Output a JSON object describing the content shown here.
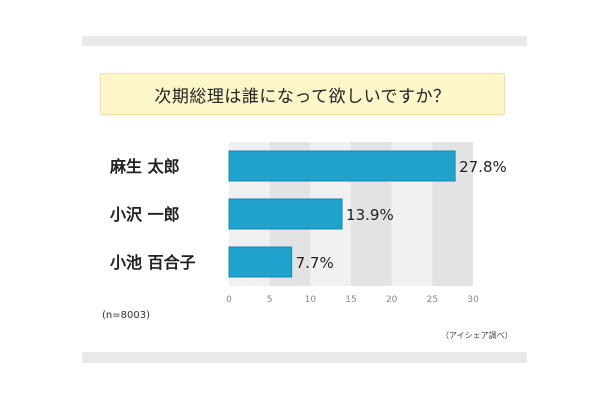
{
  "chart_data": {
    "type": "bar",
    "orientation": "horizontal",
    "title": "次期総理は誰になって欲しいですか？",
    "categories": [
      "麻生 太郎",
      "小沢 一郎",
      "小池 百合子"
    ],
    "values": [
      27.8,
      13.9,
      7.7
    ],
    "value_labels": [
      "27.8%",
      "13.9%",
      "7.7%"
    ],
    "xlim": [
      0,
      30
    ],
    "ticks": [
      "0",
      "5",
      "10",
      "15",
      "20",
      "25",
      "30"
    ],
    "tick_values": [
      0,
      5,
      10,
      15,
      20,
      25,
      30
    ],
    "grid": true,
    "bar_color": "#1fa3cc",
    "sample_note": "(n=8003)",
    "source": "（アイシェア調べ）"
  }
}
